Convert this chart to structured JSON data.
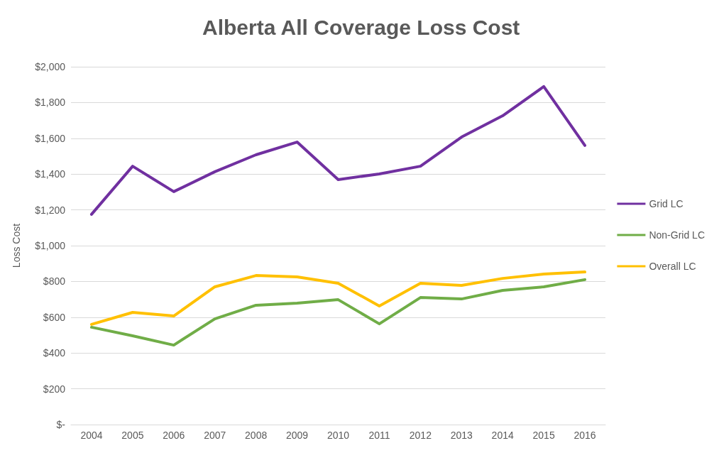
{
  "chart_data": {
    "type": "line",
    "title": "Alberta All Coverage Loss Cost",
    "ylabel": "Loss Cost",
    "categories": [
      "2004",
      "2005",
      "2006",
      "2007",
      "2008",
      "2009",
      "2010",
      "2011",
      "2012",
      "2013",
      "2014",
      "2015",
      "2016"
    ],
    "series": [
      {
        "name": "Grid LC",
        "color": "#7030a0",
        "values": [
          1175,
          1444,
          1302,
          1413,
          1508,
          1579,
          1369,
          1401,
          1444,
          1607,
          1726,
          1889,
          1560
        ]
      },
      {
        "name": "Non-Grid LC",
        "color": "#70ad47",
        "values": [
          544,
          496,
          444,
          591,
          667,
          679,
          698,
          563,
          710,
          702,
          750,
          770,
          810
        ]
      },
      {
        "name": "Overall LC",
        "color": "#ffc000",
        "values": [
          560,
          627,
          607,
          770,
          833,
          825,
          790,
          663,
          790,
          778,
          817,
          841,
          853
        ]
      }
    ],
    "ylim": [
      0,
      2000
    ],
    "yticks": [
      {
        "value": 0,
        "label": "$-"
      },
      {
        "value": 200,
        "label": "$200"
      },
      {
        "value": 400,
        "label": "$400"
      },
      {
        "value": 600,
        "label": "$600"
      },
      {
        "value": 800,
        "label": "$800"
      },
      {
        "value": 1000,
        "label": "$1,000"
      },
      {
        "value": 1200,
        "label": "$1,200"
      },
      {
        "value": 1400,
        "label": "$1,400"
      },
      {
        "value": 1600,
        "label": "$1,600"
      },
      {
        "value": 1800,
        "label": "$1,800"
      },
      {
        "value": 2000,
        "label": "$2,000"
      }
    ],
    "grid": "y",
    "legend": "right",
    "marker": "none",
    "line_style": "solid"
  }
}
